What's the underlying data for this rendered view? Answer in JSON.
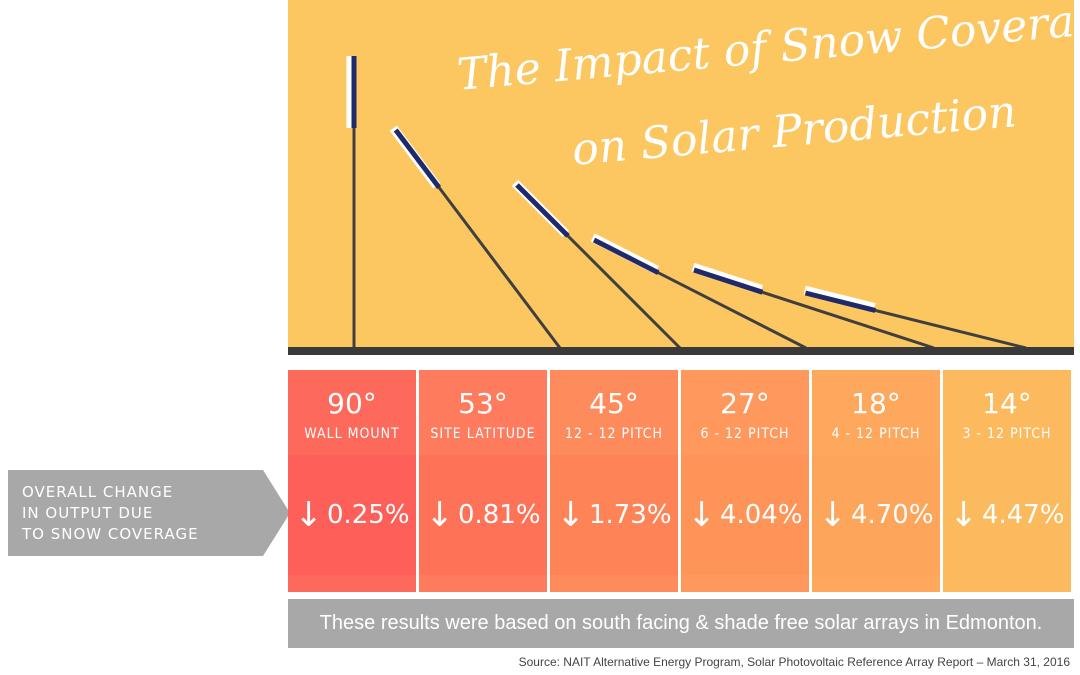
{
  "title": {
    "line1": "The Impact of Snow Coverage",
    "line2": "on Solar Production"
  },
  "row_label": "OVERALL CHANGE IN OUTPUT DUE TO SNOW COVERAGE",
  "row_label_lines": [
    "OVERALL CHANGE",
    "IN OUTPUT DUE",
    "TO SNOW COVERAGE"
  ],
  "chart_data": {
    "type": "table",
    "title": "The Impact of Snow Coverage on Solar Production",
    "columns": [
      {
        "angle": "90°",
        "angle_deg": 90,
        "label": "WALL MOUNT",
        "change": "0.25%",
        "value": 0.25
      },
      {
        "angle": "53°",
        "angle_deg": 53,
        "label": "SITE LATITUDE",
        "change": "0.81%",
        "value": 0.81
      },
      {
        "angle": "45°",
        "angle_deg": 45,
        "label": "12 - 12 PITCH",
        "change": "1.73%",
        "value": 1.73
      },
      {
        "angle": "27°",
        "angle_deg": 27,
        "label": "6 - 12 PITCH",
        "change": "4.04%",
        "value": 4.04
      },
      {
        "angle": "18°",
        "angle_deg": 18,
        "label": "4 - 12 PITCH",
        "change": "4.70%",
        "value": 4.7
      },
      {
        "angle": "14°",
        "angle_deg": 14,
        "label": "3 - 12 PITCH",
        "change": "4.47%",
        "value": 4.47
      }
    ],
    "direction": "decrease",
    "unit": "%"
  },
  "note": "These results were based on south facing & shade free solar arrays in Edmonton.",
  "source": "Source: NAIT Alternative Energy Program, Solar Photovoltaic Reference Array Report – March 31, 2016",
  "colors": {
    "background_top": "#fcc760",
    "ground": "#3a3a3a",
    "panel": "#1f2a6b",
    "note_bar": "#a8a8a8",
    "label_arrow": "#a8a8a8",
    "columns": [
      "#fd6a5c",
      "#fe7b5d",
      "#fe8b5c",
      "#fe985d",
      "#fda85d",
      "#fcb95e"
    ],
    "column_bodies": [
      "#fe5f58",
      "#fe7257",
      "#fe8357",
      "#fe9458",
      "#fda55b",
      "#fcba5e"
    ]
  },
  "icons": {
    "down_arrow": "down-arrow-icon"
  }
}
